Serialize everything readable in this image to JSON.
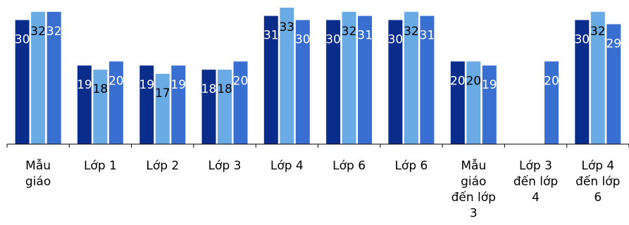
{
  "chart_data": {
    "type": "bar",
    "categories": [
      [
        "Mẫu",
        "giáo"
      ],
      [
        "Lớp 1"
      ],
      [
        "Lớp 2"
      ],
      [
        "Lớp 3"
      ],
      [
        "Lớp 4"
      ],
      [
        "Lớp 6"
      ],
      [
        "Lớp 6"
      ],
      [
        "Mẫu",
        "giáo",
        "đến lớp",
        "3"
      ],
      [
        "Lớp 3",
        "đến lớp",
        "4"
      ],
      [
        "Lớp 4",
        "đến lớp",
        "6"
      ]
    ],
    "series": [
      {
        "color": "#0a2d8c",
        "label_color": "#ffffff",
        "values": [
          30,
          19,
          19,
          18,
          31,
          30,
          30,
          20,
          null,
          30
        ]
      },
      {
        "color": "#6aabe6",
        "label_color": "#000000",
        "values": [
          32,
          18,
          17,
          18,
          33,
          32,
          32,
          20,
          null,
          32
        ]
      },
      {
        "color": "#3a6fd2",
        "label_color": "#ffffff",
        "values": [
          32,
          20,
          19,
          20,
          30,
          31,
          31,
          19,
          20,
          29
        ]
      }
    ],
    "ylim": [
      0,
      34
    ],
    "grid": false,
    "legend": "none"
  }
}
